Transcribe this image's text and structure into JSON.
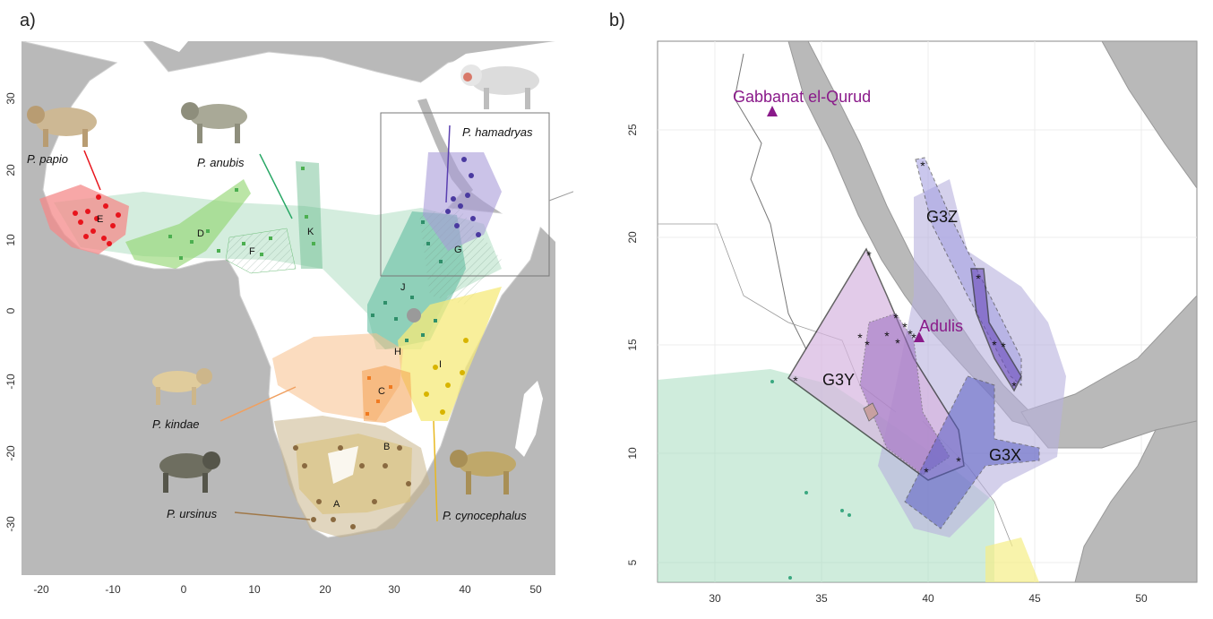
{
  "panel_a": {
    "label": "a)",
    "x_ticks": [
      "-20",
      "-10",
      "0",
      "10",
      "20",
      "30",
      "40",
      "50"
    ],
    "y_ticks": [
      "30",
      "20",
      "10",
      "0",
      "-10",
      "-20",
      "-30"
    ],
    "species": [
      {
        "name": "P. papio",
        "color": "#e8141c"
      },
      {
        "name": "P. anubis",
        "color": "#2aa866"
      },
      {
        "name": "P. hamadryas",
        "color": "#5a3fb0"
      },
      {
        "name": "P. kindae",
        "color": "#f0a060"
      },
      {
        "name": "P. ursinus",
        "color": "#a07848"
      },
      {
        "name": "P. cynocephalus",
        "color": "#e8c820"
      }
    ],
    "region_letters": [
      "E",
      "D",
      "F",
      "K",
      "G",
      "J",
      "H",
      "I",
      "C",
      "B",
      "A"
    ]
  },
  "panel_b": {
    "label": "b)",
    "x_ticks": [
      "30",
      "35",
      "40",
      "45",
      "50"
    ],
    "y_ticks": [
      "25",
      "20",
      "15",
      "10",
      "5"
    ],
    "groups": [
      "G3Z",
      "G3Y",
      "G3X"
    ],
    "sites": [
      {
        "name": "Gabbanat el-Qurud",
        "symbol": "triangle"
      },
      {
        "name": "Adulis",
        "symbol": "triangle"
      }
    ],
    "site_color": "#8a1a8a"
  }
}
